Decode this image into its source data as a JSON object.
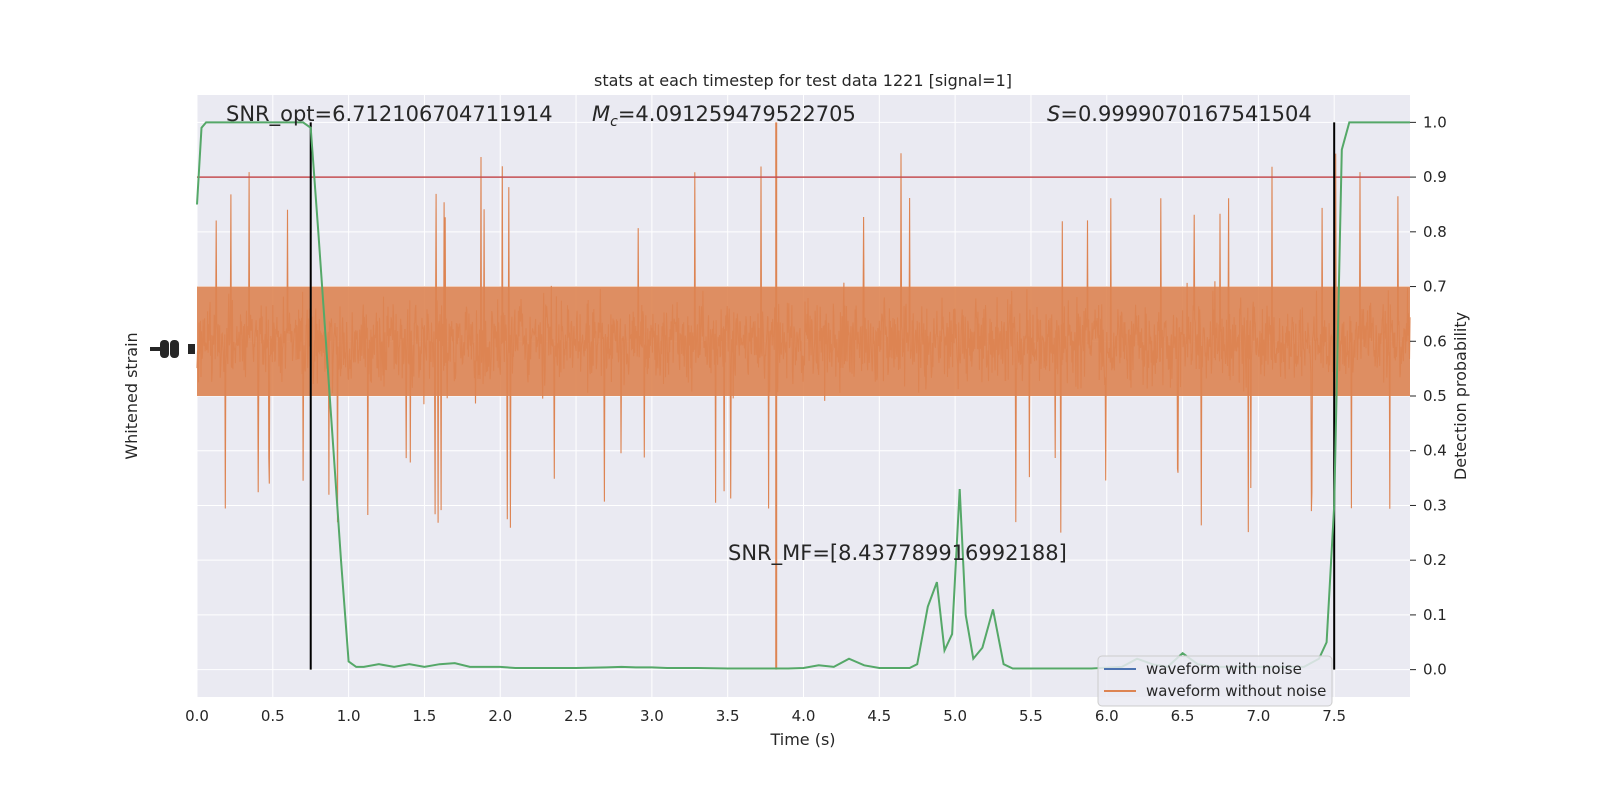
{
  "chart_data": {
    "type": "line",
    "title": "stats at each timestep for test data 1221 [signal=1]",
    "xlabel": "Time (s)",
    "ylabel_left": "Whitened strain",
    "ylabel_right": "Detection probability",
    "xlim": [
      0,
      8
    ],
    "ylim_right": [
      -0.05,
      1.05
    ],
    "x_ticks": [
      "0.0",
      "0.5",
      "1.0",
      "1.5",
      "2.0",
      "2.5",
      "3.0",
      "3.5",
      "4.0",
      "4.5",
      "5.0",
      "5.5",
      "6.0",
      "6.5",
      "7.0",
      "7.5"
    ],
    "x_tick_values": [
      0,
      0.5,
      1,
      1.5,
      2,
      2.5,
      3,
      3.5,
      4,
      4.5,
      5,
      5.5,
      6,
      6.5,
      7,
      7.5
    ],
    "y_right_ticks": [
      "0.0",
      "0.1",
      "0.2",
      "0.3",
      "0.4",
      "0.5",
      "0.6",
      "0.7",
      "0.8",
      "0.9",
      "1.0"
    ],
    "y_right_tick_values": [
      0,
      0.1,
      0.2,
      0.3,
      0.4,
      0.5,
      0.6,
      0.7,
      0.8,
      0.9,
      1.0
    ],
    "grid": true,
    "legend_position": "lower-right",
    "annotations": {
      "snr_opt": "SNR_opt=6.712106704711914",
      "mc_symbol": "M",
      "mc_sub": "c",
      "mc_value": "=4.091259479522705",
      "s_symbol": "S",
      "s_value": "=0.9999070167541504",
      "snr_mf": "SNR_MF=[8.437789916992188]"
    },
    "threshold": 0.9,
    "vertical_markers": [
      0.75,
      7.5
    ],
    "series": [
      {
        "name": "waveform with noise",
        "color": "#4c72b0",
        "kind": "strain",
        "visible_segment": "hidden behind orange trace"
      },
      {
        "name": "waveform without noise",
        "color": "#dd8452",
        "kind": "strain",
        "band_core": [
          0.5,
          0.7
        ],
        "band_typical": [
          0.35,
          0.85
        ],
        "spike_x": 3.82,
        "spike_low": 0.0,
        "spike_high": 1.0
      },
      {
        "name": "detection probability",
        "color": "#55a868",
        "x": [
          0.0,
          0.03,
          0.06,
          0.1,
          0.2,
          0.3,
          0.4,
          0.5,
          0.6,
          0.7,
          0.75,
          0.8,
          0.85,
          0.9,
          0.95,
          1.0,
          1.05,
          1.1,
          1.2,
          1.3,
          1.4,
          1.5,
          1.6,
          1.7,
          1.8,
          1.9,
          2.0,
          2.1,
          2.3,
          2.5,
          2.7,
          2.8,
          2.9,
          3.0,
          3.1,
          3.3,
          3.5,
          3.7,
          3.9,
          4.0,
          4.1,
          4.2,
          4.3,
          4.4,
          4.5,
          4.6,
          4.7,
          4.75,
          4.82,
          4.88,
          4.93,
          4.98,
          5.03,
          5.07,
          5.12,
          5.18,
          5.25,
          5.32,
          5.38,
          5.45,
          5.55,
          5.7,
          5.9,
          6.1,
          6.2,
          6.3,
          6.4,
          6.5,
          6.6,
          6.7,
          6.9,
          7.1,
          7.3,
          7.4,
          7.45,
          7.5,
          7.55,
          7.6,
          7.65,
          7.7,
          7.8,
          7.9,
          8.0
        ],
        "y": [
          0.85,
          0.99,
          1.0,
          1.0,
          1.0,
          1.0,
          1.0,
          1.0,
          1.0,
          1.0,
          0.99,
          0.8,
          0.6,
          0.4,
          0.2,
          0.015,
          0.005,
          0.005,
          0.01,
          0.005,
          0.01,
          0.005,
          0.01,
          0.012,
          0.005,
          0.005,
          0.005,
          0.003,
          0.003,
          0.003,
          0.004,
          0.005,
          0.004,
          0.004,
          0.003,
          0.003,
          0.002,
          0.002,
          0.002,
          0.003,
          0.008,
          0.005,
          0.02,
          0.008,
          0.003,
          0.003,
          0.003,
          0.01,
          0.115,
          0.16,
          0.035,
          0.065,
          0.33,
          0.1,
          0.02,
          0.04,
          0.11,
          0.01,
          0.002,
          0.002,
          0.002,
          0.002,
          0.002,
          0.005,
          0.02,
          0.01,
          0.005,
          0.03,
          0.01,
          0.005,
          0.005,
          0.005,
          0.005,
          0.02,
          0.05,
          0.3,
          0.95,
          1.0,
          1.0,
          1.0,
          1.0,
          1.0,
          1.0
        ]
      }
    ],
    "colors": {
      "background": "#eaeaf2",
      "grid": "#ffffff",
      "threshold_line": "#c44e52",
      "markers": "#000000"
    }
  }
}
